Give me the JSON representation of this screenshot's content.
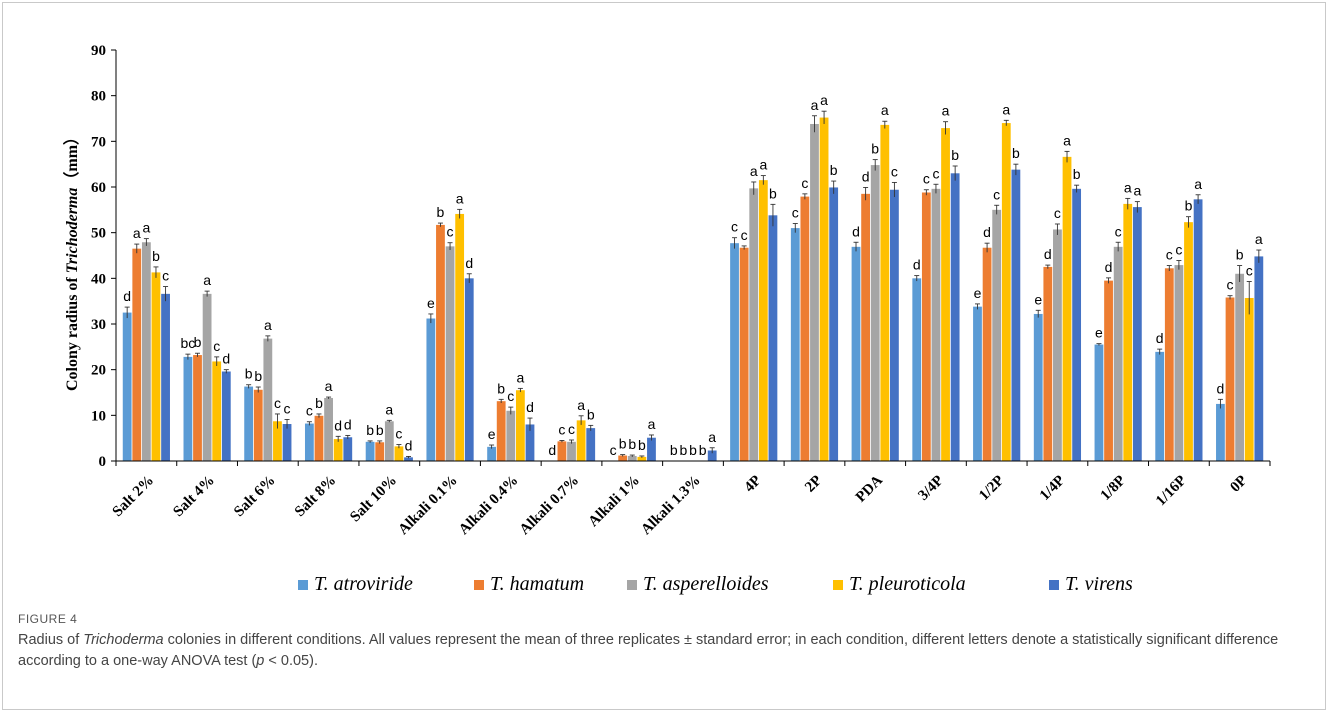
{
  "chart_data": {
    "type": "bar",
    "ylabel_prefix": "Colony radius of ",
    "ylabel_italic": "Trichoderma",
    "ylabel_suffix": "（mm）",
    "ylim": [
      0,
      90
    ],
    "yticks": [
      0,
      10,
      20,
      30,
      40,
      50,
      60,
      70,
      80,
      90
    ],
    "legend_position": "bottom",
    "categories": [
      "Salt 2%",
      "Salt 4%",
      "Salt 6%",
      "Salt 8%",
      "Salt 10%",
      "Alkali 0.1%",
      "Alkali 0.4%",
      "Alkali 0.7%",
      "Alkali 1%",
      "Alkali 1.3%",
      "4P",
      "2P",
      "PDA",
      "3/4P",
      "1/2P",
      "1/4P",
      "1/8P",
      "1/16P",
      "0P"
    ],
    "series": [
      {
        "name": "T. atroviride",
        "color": "#5B9BD5",
        "values": [
          32.5,
          22.8,
          16.3,
          8.2,
          4.2,
          31.2,
          3.1,
          0,
          0,
          0,
          47.7,
          51.0,
          46.9,
          40.0,
          33.8,
          32.2,
          25.5,
          23.9,
          12.5
        ],
        "errors": [
          1.2,
          0.6,
          0.4,
          0.4,
          0.2,
          1.0,
          0.4,
          0,
          0,
          0,
          1.2,
          1.0,
          1.0,
          0.6,
          0.6,
          0.8,
          0.2,
          0.6,
          1.0
        ],
        "letters": [
          "d",
          "bc",
          "b",
          "c",
          "b",
          "e",
          "e",
          "d",
          "c",
          "b",
          "c",
          "c",
          "d",
          "d",
          "e",
          "e",
          "e",
          "d",
          "d"
        ]
      },
      {
        "name": "T. hamatum",
        "color": "#ED7D31",
        "values": [
          46.5,
          23.2,
          15.6,
          9.9,
          4.1,
          51.7,
          13.1,
          4.3,
          1.2,
          0,
          46.7,
          57.9,
          58.5,
          58.8,
          46.7,
          42.5,
          39.5,
          42.2,
          35.8
        ],
        "errors": [
          1.0,
          0.4,
          0.6,
          0.4,
          0.3,
          0.4,
          0.4,
          0.2,
          0.2,
          0,
          0.4,
          0.6,
          1.4,
          0.6,
          1.0,
          0.4,
          0.6,
          0.6,
          0.4
        ],
        "letters": [
          "a",
          "b",
          "b",
          "b",
          "b",
          "b",
          "b",
          "c",
          "b",
          "b",
          "c",
          "c",
          "d",
          "c",
          "d",
          "d",
          "d",
          "c",
          "c"
        ]
      },
      {
        "name": "T. asperelloides",
        "color": "#A5A5A5",
        "values": [
          47.9,
          36.6,
          26.8,
          13.8,
          8.7,
          47.0,
          11.0,
          4.2,
          1.1,
          0,
          59.7,
          73.8,
          64.8,
          59.6,
          55.0,
          50.7,
          46.9,
          42.9,
          41.0
        ],
        "errors": [
          0.8,
          0.6,
          0.6,
          0.2,
          0.2,
          0.8,
          0.8,
          0.4,
          0.2,
          0,
          1.4,
          1.8,
          1.2,
          1.0,
          1.0,
          1.2,
          1.0,
          1.0,
          1.8
        ],
        "letters": [
          "a",
          "a",
          "a",
          "a",
          "a",
          "c",
          "c",
          "c",
          "b",
          "b",
          "a",
          "a",
          "b",
          "c",
          "c",
          "c",
          "c",
          "c",
          "b"
        ]
      },
      {
        "name": "T. pleuroticola",
        "color": "#FFC000",
        "values": [
          41.3,
          21.8,
          8.7,
          4.8,
          3.2,
          54.1,
          15.5,
          8.9,
          0.9,
          0,
          61.5,
          75.2,
          73.6,
          72.9,
          74.0,
          66.6,
          56.3,
          52.3,
          35.7
        ],
        "errors": [
          1.2,
          1.0,
          1.6,
          0.6,
          0.4,
          1.0,
          0.4,
          1.0,
          0.2,
          0,
          1.0,
          1.4,
          0.8,
          1.4,
          0.6,
          1.2,
          1.2,
          1.2,
          3.6
        ],
        "letters": [
          "b",
          "c",
          "c",
          "d",
          "c",
          "a",
          "a",
          "a",
          "b",
          "b",
          "a",
          "a",
          "a",
          "a",
          "a",
          "a",
          "a",
          "b",
          "c"
        ]
      },
      {
        "name": "T. virens",
        "color": "#4472C4",
        "values": [
          36.6,
          19.6,
          8.1,
          5.2,
          0.8,
          40.0,
          8.0,
          7.2,
          5.1,
          2.3,
          53.8,
          59.9,
          59.4,
          63.0,
          63.8,
          59.6,
          55.6,
          57.3,
          44.8
        ],
        "errors": [
          1.6,
          0.4,
          1.0,
          0.4,
          0.2,
          1.0,
          1.4,
          0.6,
          0.6,
          0.6,
          2.4,
          1.4,
          1.6,
          1.6,
          1.2,
          0.8,
          1.2,
          1.0,
          1.4
        ],
        "letters": [
          "c",
          "d",
          "c",
          "d",
          "d",
          "d",
          "d",
          "b",
          "a",
          "a",
          "b",
          "b",
          "c",
          "b",
          "b",
          "b",
          "a",
          "a",
          "a"
        ]
      }
    ]
  },
  "figure": {
    "label": "FIGURE 4",
    "caption_part1": "Radius of ",
    "caption_italic": "Trichoderma",
    "caption_part2": " colonies in different conditions. All values represent the mean of three replicates ± standard error; in each condition, different letters denote a statistically significant difference according to a one-way ANOVA test (",
    "caption_p": "p",
    "caption_part3": " < 0.05)."
  }
}
